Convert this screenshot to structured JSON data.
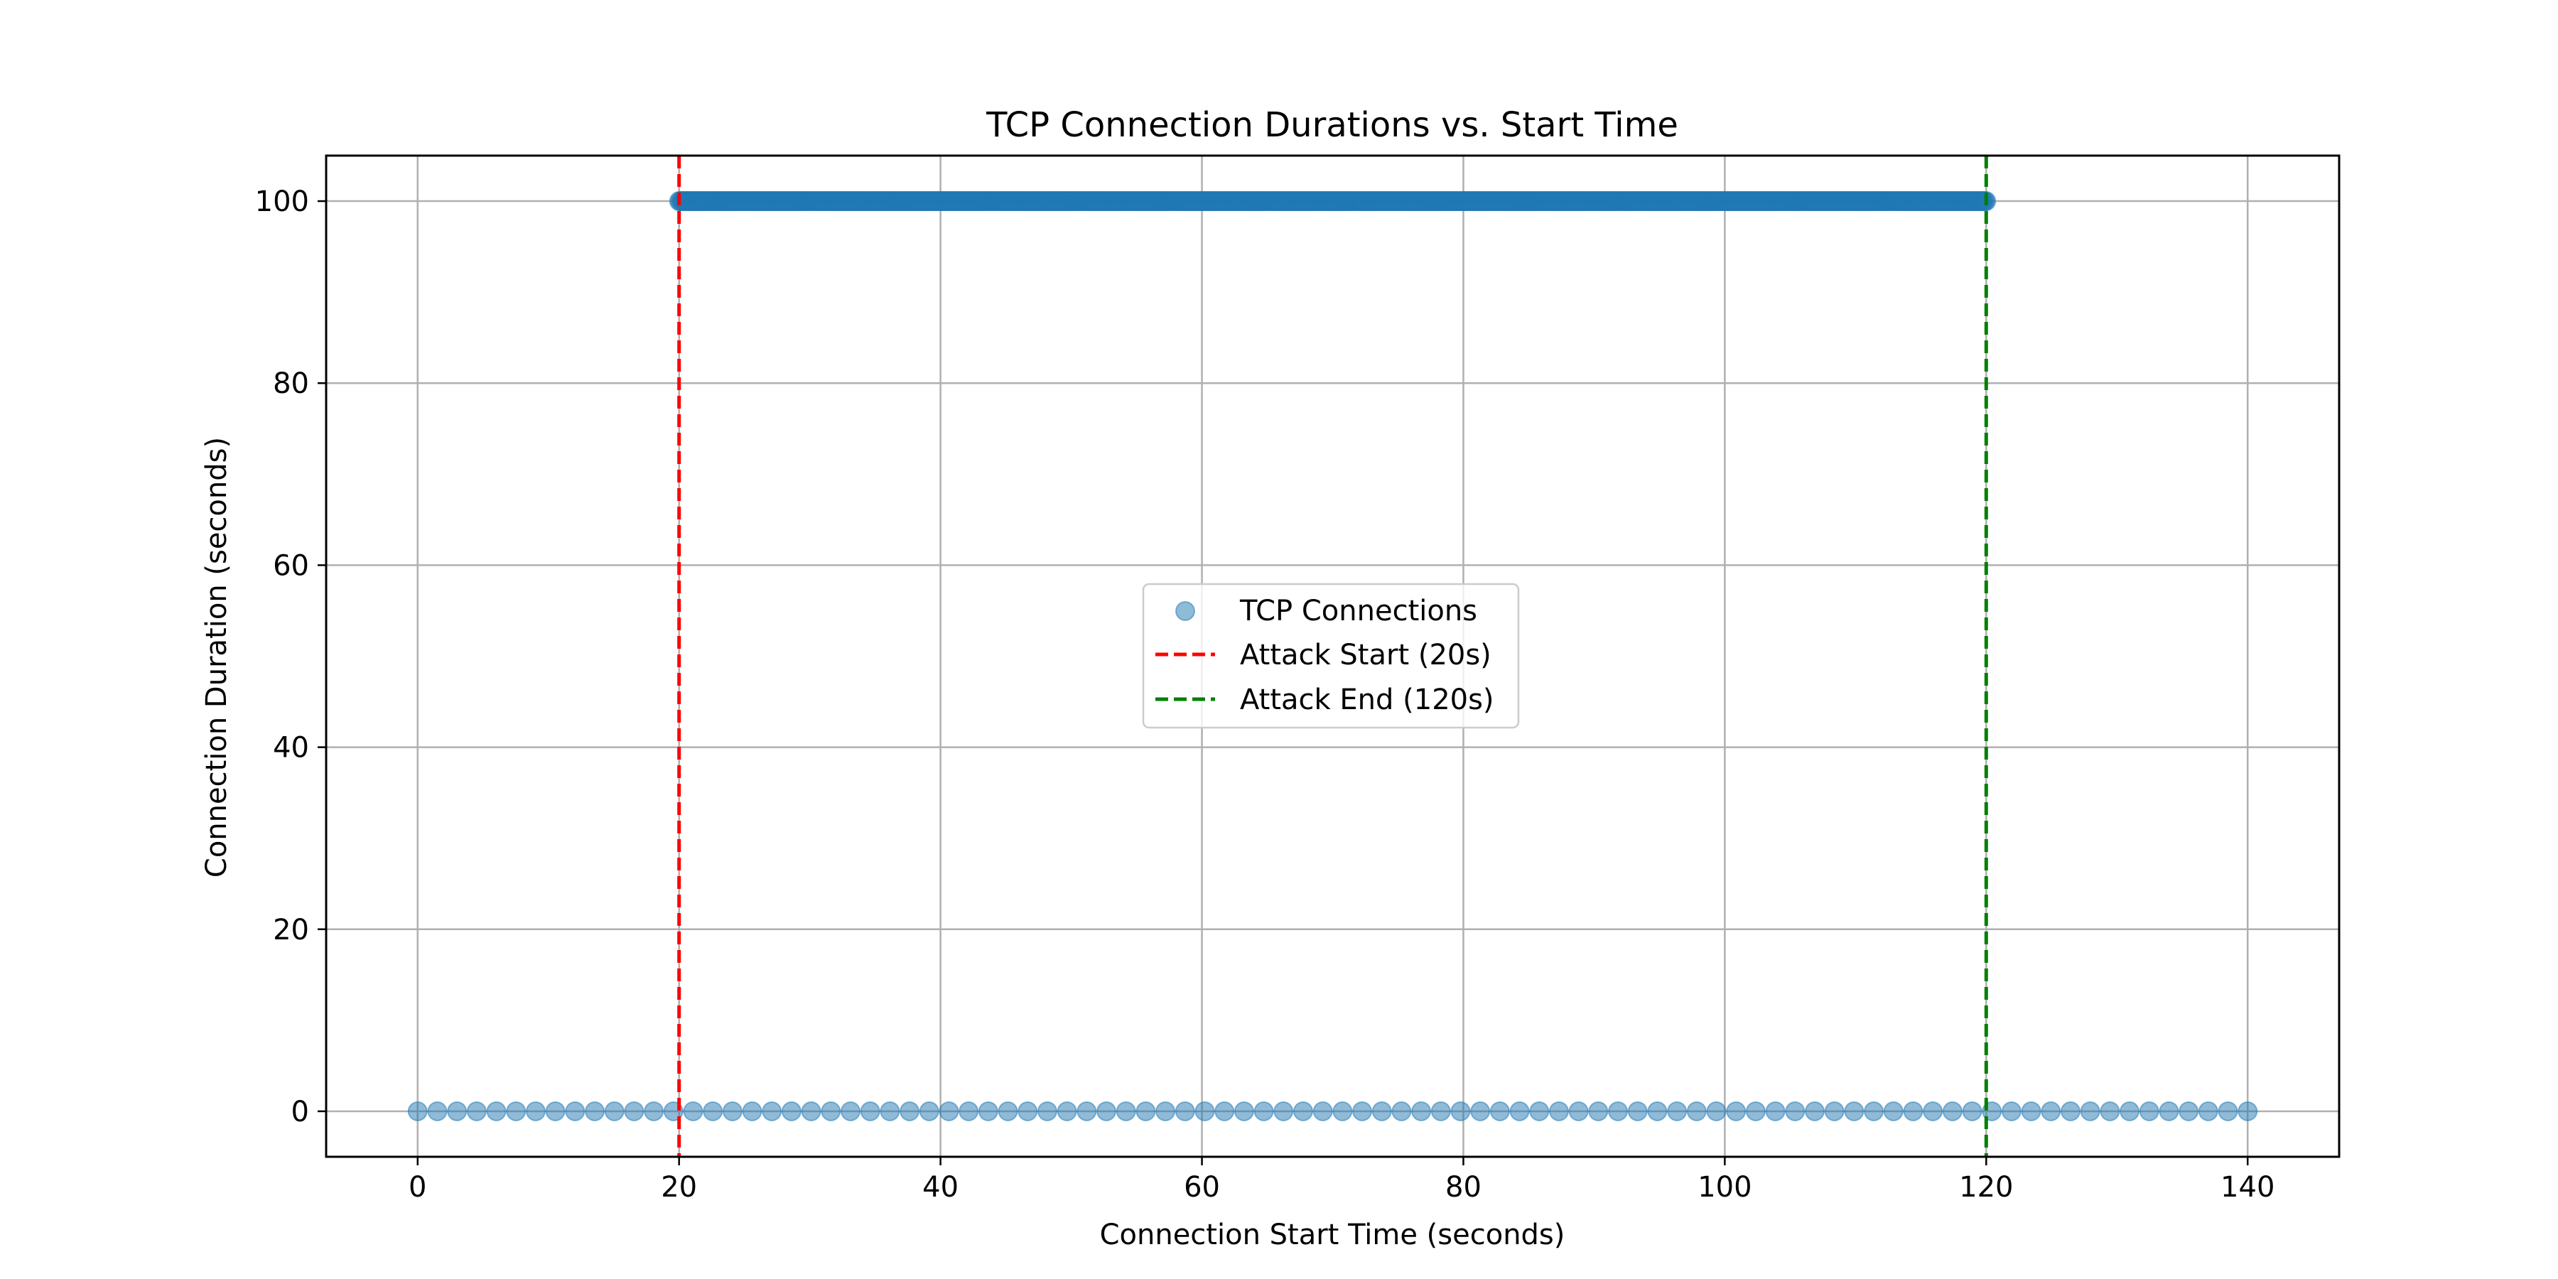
{
  "chart_data": {
    "type": "scatter",
    "title": "TCP Connection Durations vs. Start Time",
    "xlabel": "Connection Start Time (seconds)",
    "ylabel": "Connection Duration (seconds)",
    "xlim": [
      -7,
      147
    ],
    "ylim": [
      -5,
      105
    ],
    "xticks": [
      0,
      20,
      40,
      60,
      80,
      100,
      120,
      140
    ],
    "yticks": [
      0,
      20,
      40,
      60,
      80,
      100
    ],
    "grid": true,
    "legend_position": "center",
    "series": [
      {
        "name": "TCP Connections",
        "kind": "scatter",
        "color": "#1f77b4",
        "alpha": 0.5,
        "groups": [
          {
            "x_start": 0,
            "x_end": 140,
            "count": 94,
            "y": 0
          },
          {
            "x_start": 20,
            "x_end": 120,
            "count": 1000,
            "y": 100
          }
        ]
      }
    ],
    "reference_lines": [
      {
        "name": "Attack Start (20s)",
        "x": 20,
        "color": "#ff0000",
        "style": "dashed"
      },
      {
        "name": "Attack End (120s)",
        "x": 120,
        "color": "#008000",
        "style": "dashed"
      }
    ]
  }
}
